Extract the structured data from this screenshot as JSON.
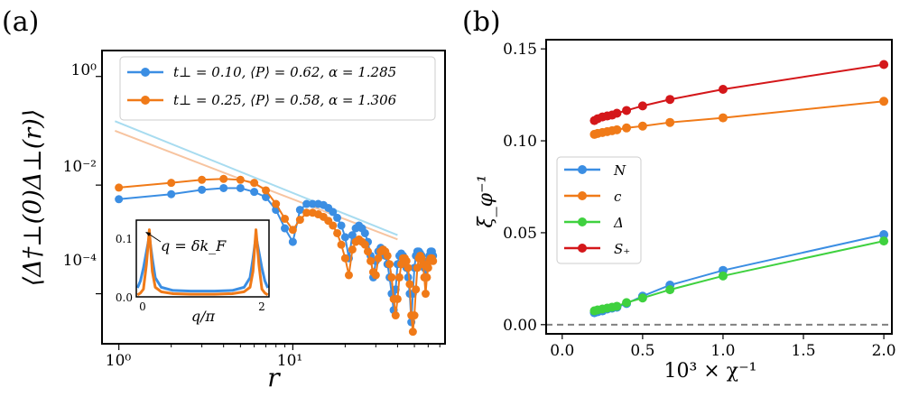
{
  "panels": {
    "a": {
      "label": "(a)",
      "ylabel": "⟨Δ†⊥(0)Δ⊥(r)⟩",
      "xlabel": "r",
      "xticks": [
        "10⁰",
        "10¹"
      ],
      "yticks": [
        "10⁰",
        "10⁻²",
        "10⁻⁴"
      ],
      "inset": {
        "annotation": "q = δk_F",
        "xlabel": "q/π",
        "xticks": [
          "0",
          "2"
        ],
        "yticks": [
          "0.1",
          "0.0"
        ]
      }
    },
    "b": {
      "label": "(b)",
      "ylabel": "ξ_φ⁻¹",
      "xlabel": "10³ × χ⁻¹",
      "xticks": [
        "0.0",
        "0.5",
        "1.0",
        "1.5",
        "2.0"
      ],
      "yticks": [
        "0.00",
        "0.05",
        "0.10",
        "0.15"
      ]
    }
  },
  "chart_data": [
    {
      "type": "line",
      "panel": "a",
      "xscale": "log",
      "yscale": "log",
      "xlim": [
        0.8,
        75
      ],
      "ylim": [
        1.2e-05,
        3
      ],
      "series": [
        {
          "name": "t⊥ = 0.10, ⟨P⟩ = 0.62, α = 1.285",
          "color": "#3b8ee3",
          "x": [
            1,
            2,
            3,
            4,
            5,
            6,
            7,
            8,
            9,
            10,
            11,
            12,
            13,
            14,
            15,
            16,
            17,
            18,
            19,
            20,
            21,
            22,
            23,
            24,
            25,
            26,
            27,
            28,
            29,
            30,
            31,
            32,
            33,
            34,
            35,
            36,
            37,
            38,
            39,
            40,
            41,
            42,
            43,
            44,
            45,
            46,
            47,
            48,
            49,
            50,
            51,
            52,
            53,
            54,
            55,
            56,
            57,
            58,
            59,
            60,
            61,
            62,
            63,
            64
          ],
          "y": [
            0.0055,
            0.0068,
            0.0082,
            0.0088,
            0.0088,
            0.0075,
            0.006,
            0.0035,
            0.0016,
            0.0009,
            0.0035,
            0.0045,
            0.0045,
            0.0045,
            0.0043,
            0.0038,
            0.0032,
            0.0025,
            0.0018,
            0.0011,
            0.00045,
            0.0012,
            0.0016,
            0.0018,
            0.0016,
            0.0013,
            0.0009,
            0.0005,
            0.0002,
            0.0004,
            0.0006,
            0.0007,
            0.00065,
            0.0005,
            0.00035,
            0.0002,
            0.0001,
            5e-05,
            0.00012,
            0.00035,
            0.0005,
            0.00055,
            0.0005,
            0.0004,
            0.0003,
            0.0002,
            0.0001,
            3e-05,
            0.0001,
            0.0003,
            0.0005,
            0.0006,
            0.0006,
            0.00055,
            0.0005,
            0.0004,
            0.0003,
            0.0002,
            0.0003,
            0.0004,
            0.0005,
            0.0006,
            0.0006,
            0.0005
          ]
        },
        {
          "name": "t⊥ = 0.25, ⟨P⟩ = 0.58, α = 1.306",
          "color": "#f07a18",
          "x": [
            1,
            2,
            3,
            4,
            5,
            6,
            7,
            8,
            9,
            10,
            11,
            12,
            13,
            14,
            15,
            16,
            17,
            18,
            19,
            20,
            21,
            22,
            23,
            24,
            25,
            26,
            27,
            28,
            29,
            30,
            31,
            32,
            33,
            34,
            35,
            36,
            37,
            38,
            39,
            40,
            41,
            42,
            43,
            44,
            45,
            46,
            47,
            48,
            49,
            50,
            51,
            52,
            53,
            54,
            55,
            56,
            57,
            58,
            59,
            60,
            61,
            62,
            63,
            64
          ],
          "y": [
            0.009,
            0.011,
            0.0125,
            0.013,
            0.0125,
            0.011,
            0.008,
            0.0045,
            0.0024,
            0.0015,
            0.0023,
            0.0031,
            0.0031,
            0.0029,
            0.0026,
            0.0022,
            0.0018,
            0.0013,
            0.0008,
            0.00045,
            0.00022,
            0.00065,
            0.0009,
            0.001,
            0.0009,
            0.0008,
            0.0006,
            0.0004,
            0.00025,
            0.00022,
            0.00045,
            0.0006,
            0.00065,
            0.0006,
            0.0005,
            0.00035,
            0.0002,
            8e-05,
            4e-05,
            8e-05,
            0.0002,
            0.00035,
            0.00045,
            0.00045,
            0.0004,
            0.0003,
            0.00015,
            4e-05,
            2e-05,
            4e-05,
            0.00012,
            0.0003,
            0.00045,
            0.0005,
            0.00045,
            0.00035,
            0.0002,
            0.0001,
            0.0002,
            0.0003,
            0.0004,
            0.00045,
            0.00045,
            0.0004
          ]
        }
      ],
      "fit_lines": [
        {
          "color": "#a8dcf0",
          "x": [
            0.95,
            40
          ],
          "y": [
            0.15,
            0.0012
          ]
        },
        {
          "color": "#f7c4a0",
          "x": [
            0.95,
            40
          ],
          "y": [
            0.1,
            0.001
          ]
        }
      ],
      "legend": "top-right"
    },
    {
      "type": "line",
      "panel": "a-inset",
      "xlim": [
        -0.12,
        2.12
      ],
      "ylim": [
        0,
        0.12
      ],
      "series": [
        {
          "color": "#3b8ee3",
          "x": [
            -0.1,
            -0.05,
            0,
            0.05,
            0.1,
            0.15,
            0.2,
            0.3,
            0.5,
            0.8,
            1.0,
            1.2,
            1.5,
            1.7,
            1.8,
            1.85,
            1.9,
            1.95,
            2.0,
            2.05,
            2.1
          ],
          "y": [
            0.014,
            0.025,
            0.045,
            0.07,
            0.095,
            0.06,
            0.03,
            0.015,
            0.01,
            0.009,
            0.009,
            0.009,
            0.01,
            0.015,
            0.03,
            0.06,
            0.095,
            0.07,
            0.045,
            0.025,
            0.014
          ]
        },
        {
          "color": "#f07a18",
          "x": [
            -0.1,
            -0.05,
            0,
            0.05,
            0.1,
            0.15,
            0.2,
            0.3,
            0.5,
            0.8,
            1.0,
            1.2,
            1.5,
            1.7,
            1.8,
            1.85,
            1.9,
            1.95,
            2.0,
            2.05,
            2.1
          ],
          "y": [
            0.003,
            0.006,
            0.012,
            0.05,
            0.105,
            0.04,
            0.015,
            0.008,
            0.005,
            0.004,
            0.004,
            0.004,
            0.005,
            0.008,
            0.015,
            0.04,
            0.105,
            0.05,
            0.012,
            0.006,
            0.003
          ]
        }
      ]
    },
    {
      "type": "line",
      "panel": "b",
      "xlim": [
        -0.1,
        2.05
      ],
      "ylim": [
        -0.005,
        0.155
      ],
      "reference_line": {
        "y": 0,
        "style": "dashed",
        "color": "#808080"
      },
      "legend": "center-left",
      "series": [
        {
          "name": "N",
          "color": "#3b8ee3",
          "x": [
            0.2,
            0.22,
            0.25,
            0.28,
            0.31,
            0.34,
            0.4,
            0.5,
            0.67,
            1.0,
            2.0
          ],
          "y": [
            0.0065,
            0.007,
            0.0075,
            0.0085,
            0.009,
            0.0095,
            0.0115,
            0.0155,
            0.0215,
            0.0295,
            0.049
          ]
        },
        {
          "name": "c",
          "color": "#f07a18",
          "x": [
            0.2,
            0.22,
            0.25,
            0.28,
            0.31,
            0.34,
            0.4,
            0.5,
            0.67,
            1.0,
            2.0
          ],
          "y": [
            0.1035,
            0.104,
            0.1045,
            0.105,
            0.1055,
            0.106,
            0.107,
            0.108,
            0.11,
            0.1125,
            0.1215
          ]
        },
        {
          "name": "Δ",
          "color": "#3fd13f",
          "x": [
            0.2,
            0.22,
            0.25,
            0.28,
            0.31,
            0.34,
            0.4,
            0.5,
            0.67,
            1.0,
            2.0
          ],
          "y": [
            0.0075,
            0.008,
            0.0085,
            0.009,
            0.0095,
            0.01,
            0.012,
            0.0145,
            0.019,
            0.0265,
            0.0455
          ]
        },
        {
          "name": "S₊",
          "color": "#d4171a",
          "x": [
            0.2,
            0.22,
            0.25,
            0.28,
            0.31,
            0.34,
            0.4,
            0.5,
            0.67,
            1.0,
            2.0
          ],
          "y": [
            0.111,
            0.112,
            0.113,
            0.1135,
            0.114,
            0.115,
            0.1165,
            0.119,
            0.1225,
            0.128,
            0.1415
          ]
        }
      ]
    }
  ]
}
